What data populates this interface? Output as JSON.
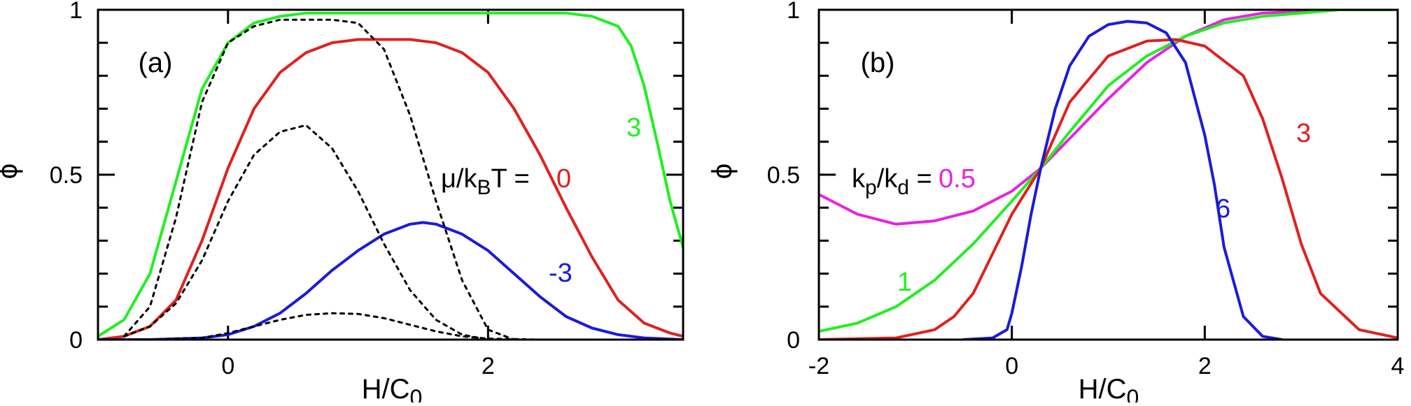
{
  "chart_data": [
    {
      "type": "line",
      "panel_label": "(a)",
      "xlabel": "H/C",
      "xlabel_sub": "0",
      "ylabel": "ϕ",
      "xlim": [
        -1.0,
        3.5
      ],
      "ylim": [
        0,
        1
      ],
      "xticks": [
        0,
        2
      ],
      "yticks": [
        0,
        0.5,
        1
      ],
      "yticklabels": [
        "0",
        "0.5",
        "1"
      ],
      "param_label": {
        "base": "μ/k",
        "sub": "B",
        "tail": "T ="
      },
      "series": [
        {
          "name": "3",
          "color": "#22ee22",
          "dashed": false,
          "x": [
            -1.0,
            -0.8,
            -0.6,
            -0.4,
            -0.2,
            0.0,
            0.2,
            0.4,
            0.6,
            0.8,
            1.0,
            1.2,
            1.4,
            1.6,
            1.8,
            2.0,
            2.2,
            2.4,
            2.6,
            2.8,
            3.0,
            3.1,
            3.2,
            3.3,
            3.4,
            3.5
          ],
          "y": [
            0.01,
            0.06,
            0.2,
            0.48,
            0.76,
            0.9,
            0.96,
            0.98,
            0.99,
            0.99,
            0.99,
            0.99,
            0.99,
            0.99,
            0.99,
            0.99,
            0.99,
            0.99,
            0.99,
            0.98,
            0.95,
            0.89,
            0.77,
            0.6,
            0.42,
            0.28
          ]
        },
        {
          "name": "0",
          "color": "#e02020",
          "dashed": false,
          "x": [
            -1.0,
            -0.8,
            -0.6,
            -0.4,
            -0.2,
            0.0,
            0.2,
            0.4,
            0.6,
            0.8,
            1.0,
            1.2,
            1.4,
            1.6,
            1.8,
            2.0,
            2.2,
            2.4,
            2.6,
            2.8,
            3.0,
            3.2,
            3.4,
            3.5
          ],
          "y": [
            0.0,
            0.01,
            0.04,
            0.12,
            0.3,
            0.52,
            0.7,
            0.81,
            0.87,
            0.9,
            0.91,
            0.91,
            0.91,
            0.9,
            0.87,
            0.81,
            0.7,
            0.56,
            0.4,
            0.25,
            0.12,
            0.05,
            0.02,
            0.01
          ]
        },
        {
          "name": "-3",
          "color": "#1a1adc",
          "dashed": false,
          "x": [
            -1.0,
            -0.6,
            -0.2,
            0.0,
            0.2,
            0.4,
            0.6,
            0.8,
            1.0,
            1.2,
            1.4,
            1.5,
            1.6,
            1.8,
            2.0,
            2.2,
            2.4,
            2.6,
            2.8,
            3.0,
            3.2,
            3.5
          ],
          "y": [
            0.0,
            0.0,
            0.005,
            0.015,
            0.04,
            0.08,
            0.14,
            0.21,
            0.27,
            0.32,
            0.35,
            0.355,
            0.35,
            0.32,
            0.27,
            0.2,
            0.13,
            0.07,
            0.035,
            0.015,
            0.005,
            0.0
          ]
        },
        {
          "name": "",
          "color": "#000000",
          "dashed": true,
          "x": [
            -0.8,
            -0.6,
            -0.4,
            -0.2,
            0.0,
            0.2,
            0.4,
            0.6,
            0.8,
            1.0,
            1.2,
            1.4,
            1.6,
            1.8,
            2.0,
            2.2
          ],
          "y": [
            0.01,
            0.1,
            0.37,
            0.72,
            0.9,
            0.95,
            0.97,
            0.97,
            0.97,
            0.96,
            0.88,
            0.68,
            0.42,
            0.18,
            0.03,
            0.0
          ]
        },
        {
          "name": "",
          "color": "#000000",
          "dashed": true,
          "x": [
            -0.8,
            -0.6,
            -0.4,
            -0.2,
            0.0,
            0.2,
            0.4,
            0.6,
            0.8,
            1.0,
            1.2,
            1.4,
            1.6,
            1.8,
            2.0
          ],
          "y": [
            0.01,
            0.04,
            0.11,
            0.24,
            0.42,
            0.56,
            0.63,
            0.65,
            0.58,
            0.45,
            0.29,
            0.15,
            0.06,
            0.015,
            0.0
          ]
        },
        {
          "name": "",
          "color": "#000000",
          "dashed": true,
          "x": [
            -0.6,
            -0.2,
            0.0,
            0.2,
            0.4,
            0.6,
            0.8,
            1.0,
            1.2,
            1.4,
            1.6,
            1.8,
            2.0,
            2.4
          ],
          "y": [
            0.0,
            0.005,
            0.02,
            0.04,
            0.06,
            0.075,
            0.08,
            0.078,
            0.065,
            0.045,
            0.025,
            0.01,
            0.003,
            0.0
          ]
        }
      ]
    },
    {
      "type": "line",
      "panel_label": "(b)",
      "xlabel": "H/C",
      "xlabel_sub": "0",
      "ylabel": "ϕ",
      "xlim": [
        -2,
        4
      ],
      "ylim": [
        0,
        1
      ],
      "xticks": [
        -2,
        0,
        2,
        4
      ],
      "xticklabels": [
        "-2",
        "0",
        "2",
        "4"
      ],
      "yticks": [
        0,
        0.5,
        1
      ],
      "yticklabels": [
        "0",
        "0.5",
        "1"
      ],
      "param_label": {
        "base": "k",
        "sub": "p",
        "tail": "/k",
        "sub2": "d",
        "tail2": " ="
      },
      "series": [
        {
          "name": "0.5",
          "color": "#e822e0",
          "dashed": false,
          "x": [
            -2.0,
            -1.6,
            -1.2,
            -0.8,
            -0.4,
            0.0,
            0.3,
            0.6,
            1.0,
            1.4,
            1.8,
            2.2,
            2.6,
            3.0,
            3.4,
            4.0
          ],
          "y": [
            0.44,
            0.38,
            0.35,
            0.36,
            0.39,
            0.45,
            0.52,
            0.61,
            0.73,
            0.84,
            0.92,
            0.97,
            0.99,
            0.995,
            1.0,
            1.0
          ]
        },
        {
          "name": "1",
          "color": "#22ee22",
          "dashed": false,
          "x": [
            -2.0,
            -1.6,
            -1.2,
            -0.8,
            -0.4,
            0.0,
            0.3,
            0.6,
            1.0,
            1.4,
            1.8,
            2.2,
            2.6,
            3.0,
            3.4,
            4.0
          ],
          "y": [
            0.025,
            0.05,
            0.1,
            0.18,
            0.29,
            0.42,
            0.52,
            0.63,
            0.77,
            0.86,
            0.92,
            0.96,
            0.98,
            0.99,
            1.0,
            1.0
          ]
        },
        {
          "name": "3",
          "color": "#e02020",
          "dashed": false,
          "x": [
            -2.0,
            -1.2,
            -0.8,
            -0.6,
            -0.4,
            -0.2,
            0.0,
            0.3,
            0.6,
            1.0,
            1.4,
            1.7,
            2.0,
            2.4,
            2.6,
            2.8,
            3.0,
            3.2,
            3.6,
            4.0
          ],
          "y": [
            0.0,
            0.005,
            0.03,
            0.07,
            0.14,
            0.26,
            0.38,
            0.52,
            0.72,
            0.86,
            0.905,
            0.91,
            0.89,
            0.8,
            0.67,
            0.49,
            0.29,
            0.14,
            0.03,
            0.005
          ]
        },
        {
          "name": "6",
          "color": "#1a1adc",
          "dashed": false,
          "x": [
            -0.5,
            -0.2,
            -0.05,
            0.0,
            0.1,
            0.2,
            0.3,
            0.45,
            0.6,
            0.8,
            1.0,
            1.2,
            1.4,
            1.6,
            1.8,
            2.0,
            2.1,
            2.2,
            2.4,
            2.6,
            2.8
          ],
          "y": [
            0.0,
            0.005,
            0.03,
            0.08,
            0.22,
            0.38,
            0.52,
            0.7,
            0.83,
            0.92,
            0.955,
            0.965,
            0.96,
            0.93,
            0.84,
            0.62,
            0.47,
            0.28,
            0.07,
            0.01,
            0.0
          ]
        }
      ]
    }
  ]
}
